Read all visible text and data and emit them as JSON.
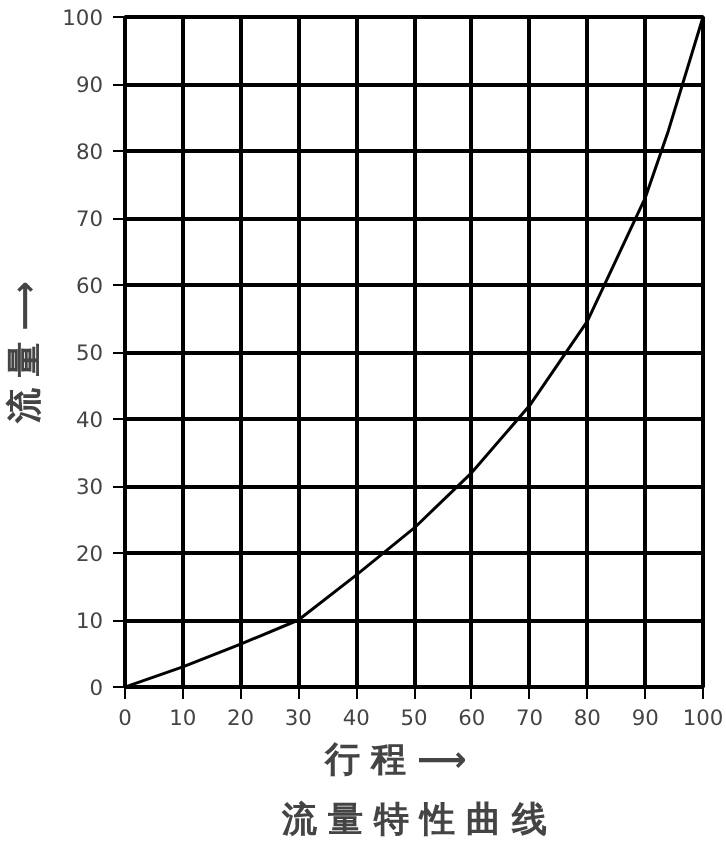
{
  "chart_data": {
    "type": "line",
    "title": "流 量 特 性 曲 线",
    "xlabel": "行    程 ⟶",
    "ylabel": "流 量 ⟶",
    "x": [
      0,
      10,
      20,
      30,
      40,
      50,
      60,
      70,
      80,
      90,
      94,
      100
    ],
    "series": [
      {
        "color": "#000000",
        "values": [
          0,
          3,
          6.4,
          10,
          16.7,
          23.7,
          32,
          42,
          54.6,
          73,
          83,
          100
        ]
      }
    ],
    "xlim": [
      0,
      100
    ],
    "ylim": [
      0,
      100
    ],
    "xticks": [
      0,
      10,
      20,
      30,
      40,
      50,
      60,
      70,
      80,
      90,
      100
    ],
    "yticks": [
      0,
      10,
      20,
      30,
      40,
      50,
      60,
      70,
      80,
      90,
      100
    ],
    "grid": true,
    "marker": "none",
    "line_style": "solid"
  }
}
